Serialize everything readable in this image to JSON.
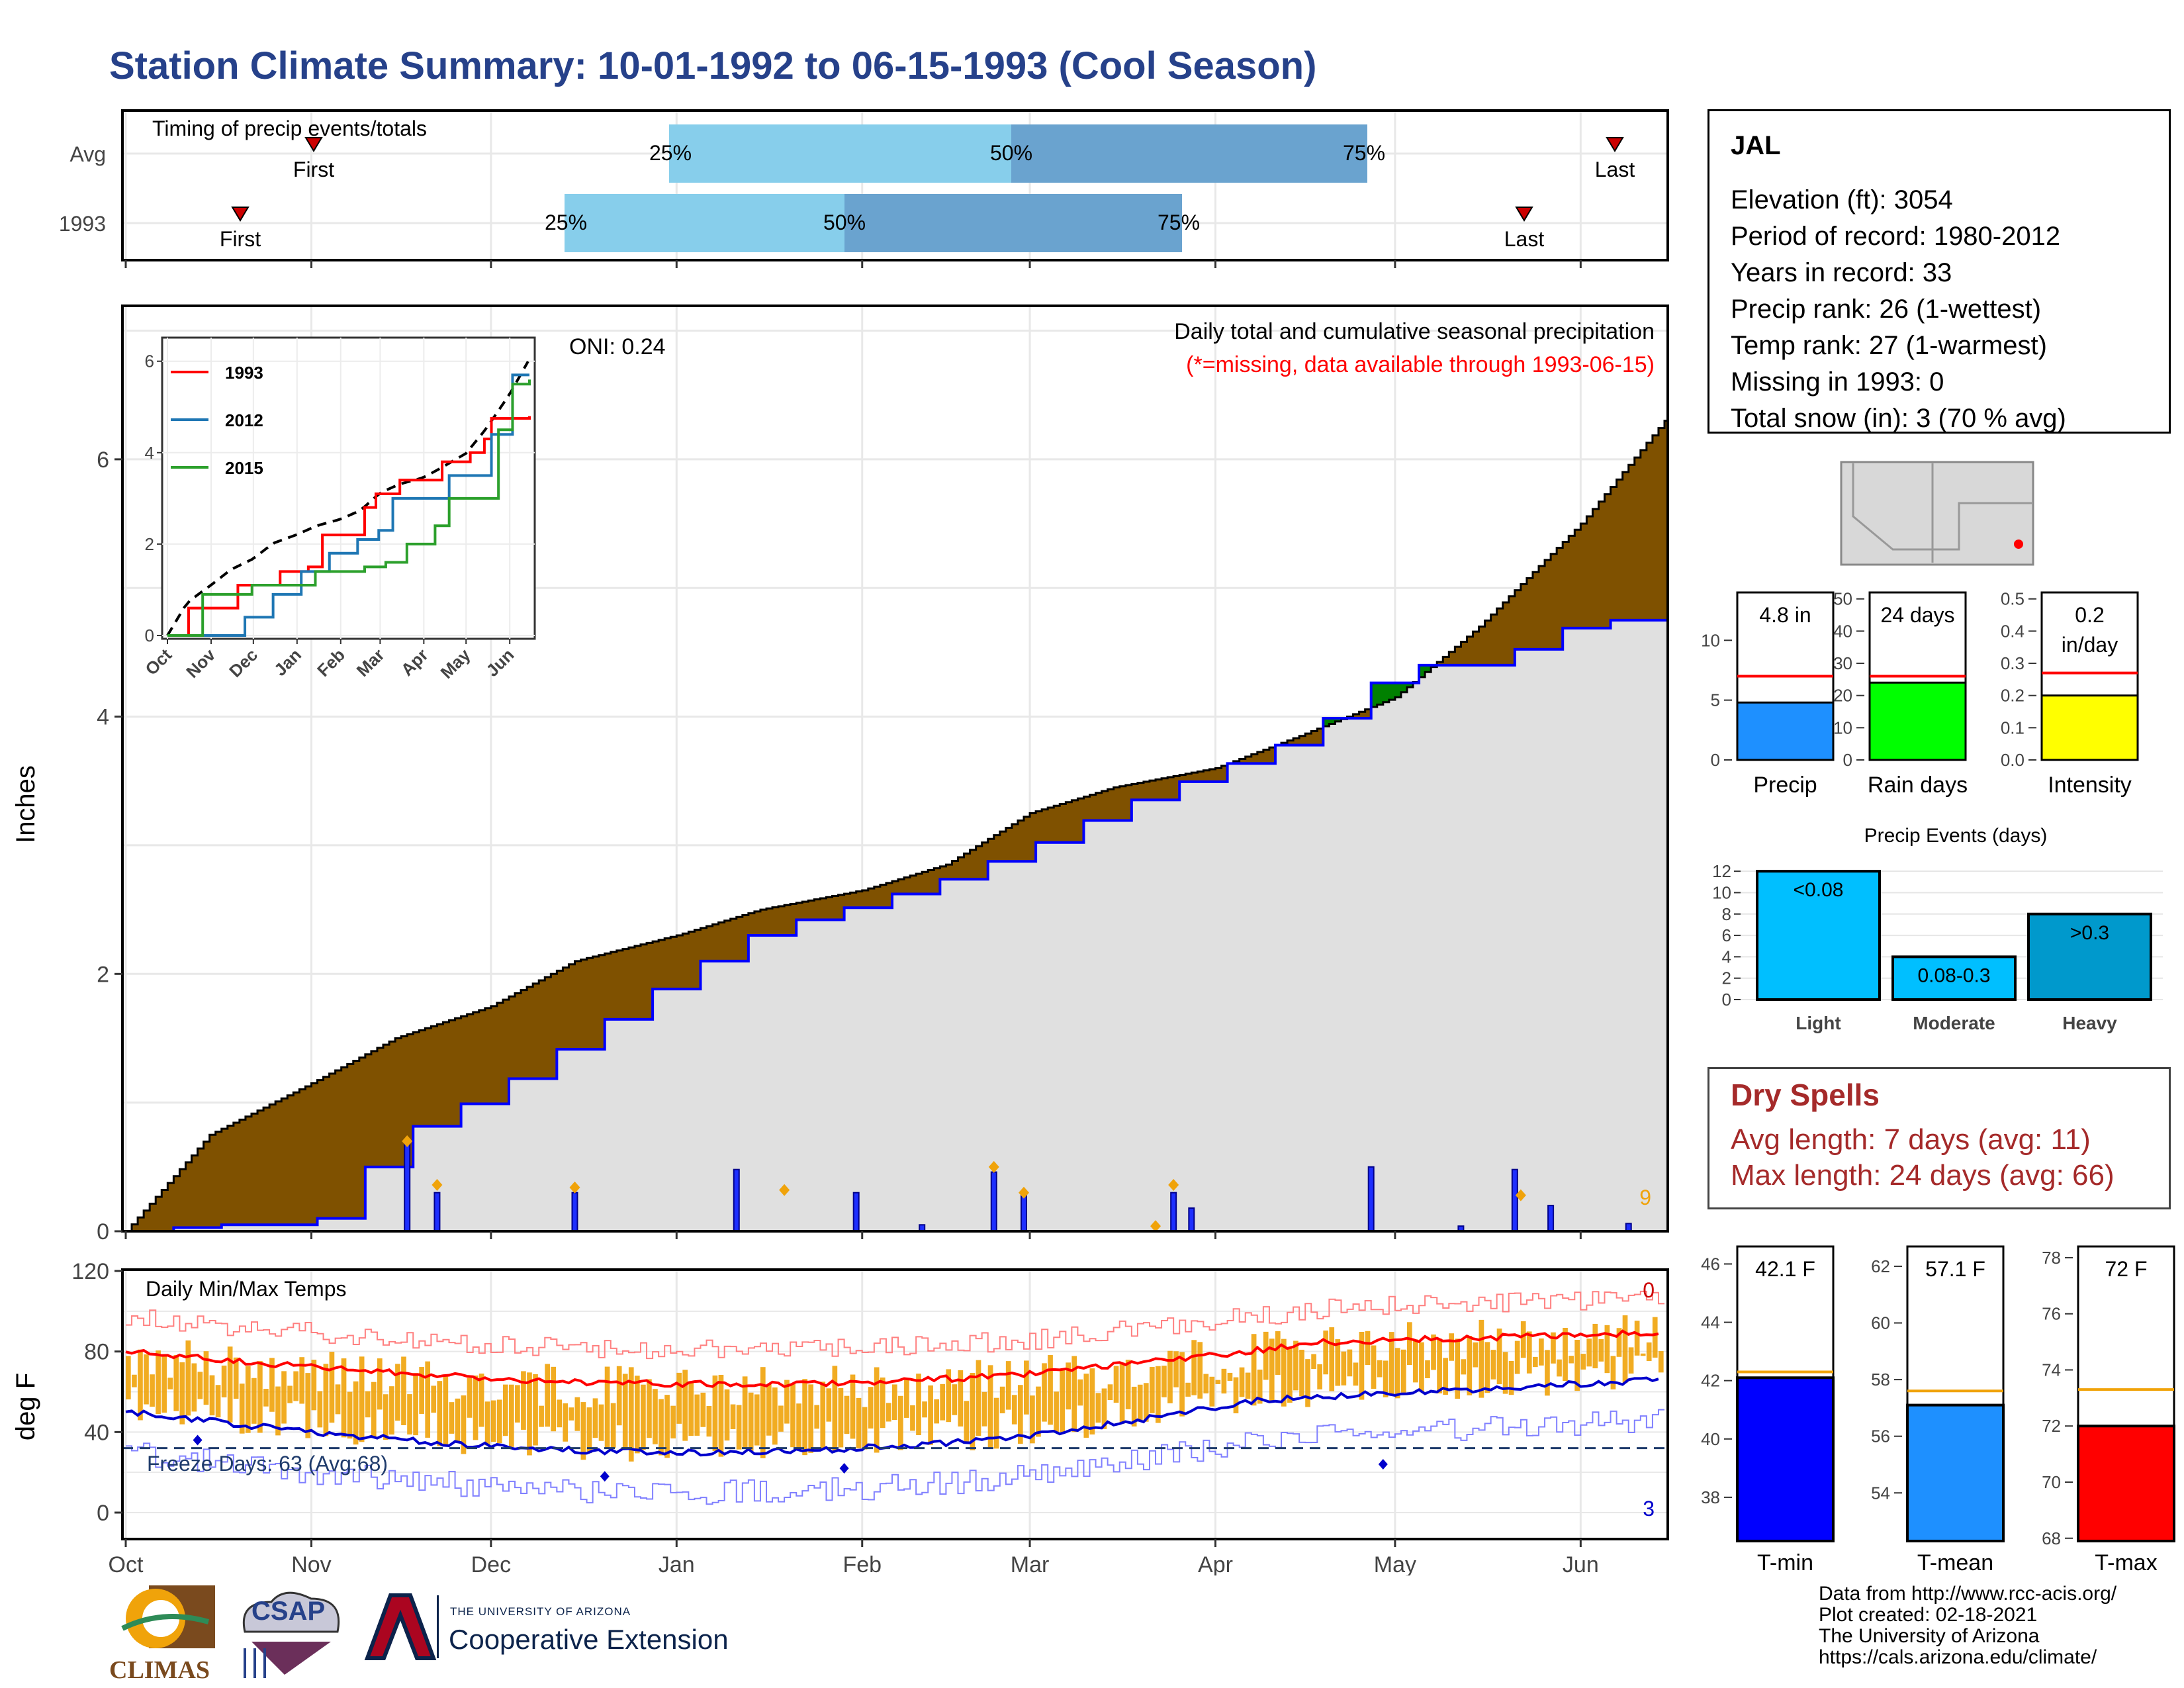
{
  "title": "Station Climate Summary: 10-01-1992 to 06-15-1993 (Cool Season)",
  "colors": {
    "title": "#26418a",
    "light_blue": "#87ceeb",
    "steel_blue": "#6aa3cf",
    "brown": "#7f5100",
    "green": "#008000",
    "grey_fill": "#e0e0e0",
    "avg_line": "#0000ff",
    "orange": "#f0a30a",
    "red": "#ff0000"
  },
  "timing_panel": {
    "title": "Timing of precip events/totals",
    "rows": [
      {
        "label": "Avg",
        "first": "First",
        "last": "Last",
        "p25": "25%",
        "p50": "50%",
        "p75": "75%"
      },
      {
        "label": "1993",
        "first": "First",
        "last": "Last",
        "p25": "25%",
        "p50": "50%",
        "p75": "75%"
      }
    ]
  },
  "precip_panel": {
    "ylabel": "Inches",
    "header": "Daily total and cumulative seasonal precipitation",
    "missing_note": "(*=missing, data available through 1993-06-15)",
    "oni": "ONI: 0.24",
    "corner_count": "9",
    "yticks": [
      "0",
      "2",
      "4",
      "6"
    ]
  },
  "inset": {
    "legend": [
      "1993",
      "2012",
      "2015"
    ],
    "yticks": [
      "0",
      "2",
      "4",
      "6"
    ],
    "xticks": [
      "Oct",
      "Nov",
      "Dec",
      "Jan",
      "Feb",
      "Mar",
      "Apr",
      "May",
      "Jun"
    ]
  },
  "temp_panel": {
    "title": "Daily Min/Max Temps",
    "ylabel": "deg F",
    "freeze": "Freeze Days: 63 (Avg:68)",
    "top_count": "0",
    "bottom_count": "3",
    "yticks": [
      "0",
      "40",
      "80",
      "120"
    ],
    "xticks": [
      "Oct",
      "Nov",
      "Dec",
      "Jan",
      "Feb",
      "Mar",
      "Apr",
      "May",
      "Jun"
    ]
  },
  "station": {
    "name": "JAL",
    "lines": [
      "Elevation (ft): 3054",
      "Period of record: 1980-2012",
      "Years in record: 33",
      "Precip rank: 26 (1-wettest)",
      "Temp rank: 27 (1-warmest)",
      "Missing in 1993: 0",
      "Total snow (in): 3 (70 % avg)"
    ]
  },
  "mini_bars": [
    {
      "label": "Precip",
      "top_text": "4.8 in",
      "value": 4.8,
      "avg": 7.0,
      "ymax": 14,
      "yticks": [
        "0",
        "5",
        "10"
      ],
      "tickvals": [
        0,
        5,
        10
      ],
      "color": "#1e90ff"
    },
    {
      "label": "Rain days",
      "top_text": "24 days",
      "value": 24,
      "avg": 26,
      "ymax": 52,
      "yticks": [
        "0",
        "10",
        "20",
        "30",
        "40",
        "50"
      ],
      "tickvals": [
        0,
        10,
        20,
        30,
        40,
        50
      ],
      "color": "#00ff00"
    },
    {
      "label": "Intensity",
      "top_text_1": "0.2",
      "top_text_2": "in/day",
      "value": 0.2,
      "avg": 0.27,
      "ymax": 0.52,
      "yticks": [
        "0.0",
        "0.1",
        "0.2",
        "0.3",
        "0.4",
        "0.5"
      ],
      "tickvals": [
        0,
        0.1,
        0.2,
        0.3,
        0.4,
        0.5
      ],
      "color": "#ffff00"
    }
  ],
  "precip_events": {
    "title": "Precip Events (days)",
    "yticks": [
      "0",
      "2",
      "4",
      "6",
      "8",
      "10",
      "12"
    ],
    "bars": [
      {
        "cat": "Light",
        "text": "<0.08",
        "value": 12,
        "color": "#00bfff"
      },
      {
        "cat": "Moderate",
        "text": "0.08-0.3",
        "value": 4,
        "color": "#00bfff"
      },
      {
        "cat": "Heavy",
        "text": ">0.3",
        "value": 8,
        "color": "#0099cc"
      }
    ]
  },
  "dry_spells": {
    "title": "Dry Spells",
    "avg": "Avg length: 7 days (avg: 11)",
    "max": "Max length: 24 days (avg: 66)"
  },
  "temp_bars": [
    {
      "label": "T-min",
      "top_text": "42.1 F",
      "value": 42.1,
      "avg": 42.3,
      "ylim": [
        36.5,
        46.6
      ],
      "yticks": [
        "38",
        "40",
        "42",
        "44",
        "46"
      ],
      "tickvals": [
        38,
        40,
        42,
        44,
        46
      ],
      "color": "#0000ff"
    },
    {
      "label": "T-mean",
      "top_text": "57.1 F",
      "value": 57.1,
      "avg": 57.6,
      "ylim": [
        52.3,
        62.7
      ],
      "yticks": [
        "54",
        "56",
        "58",
        "60",
        "62"
      ],
      "tickvals": [
        54,
        56,
        58,
        60,
        62
      ],
      "color": "#1e90ff"
    },
    {
      "label": "T-max",
      "top_text": "72 F",
      "value": 72.0,
      "avg": 73.3,
      "ylim": [
        67.9,
        78.4
      ],
      "yticks": [
        "68",
        "70",
        "72",
        "74",
        "76",
        "78"
      ],
      "tickvals": [
        68,
        70,
        72,
        74,
        76,
        78
      ],
      "color": "#ff0000"
    }
  ],
  "credits": [
    "Data from http://www.rcc-acis.org/",
    "Plot created: 02-18-2021",
    "The University of Arizona",
    "https://cals.arizona.edu/climate/"
  ],
  "logos": {
    "climas": "CLIMAS",
    "csap": "CSAP",
    "ua_small": "THE UNIVERSITY OF ARIZONA",
    "ua_big": "Cooperative Extension"
  },
  "chart_data": {
    "type": "area",
    "title": "Daily total and cumulative seasonal precipitation",
    "ylabel": "Inches",
    "x_dates": [
      "1992-10-01",
      "1992-10-15",
      "1992-11-01",
      "1992-11-15",
      "1992-12-01",
      "1992-12-15",
      "1993-01-01",
      "1993-01-15",
      "1993-02-01",
      "1993-02-15",
      "1993-03-01",
      "1993-03-15",
      "1993-04-01",
      "1993-04-15",
      "1993-05-01",
      "1993-05-15",
      "1993-06-01",
      "1993-06-15"
    ],
    "series": [
      {
        "name": "1993",
        "values": [
          0.0,
          0.05,
          0.05,
          0.75,
          1.1,
          1.5,
          2.0,
          2.35,
          2.55,
          2.75,
          3.0,
          3.3,
          3.6,
          3.85,
          4.4,
          4.4,
          4.75,
          4.75
        ]
      },
      {
        "name": "Avg",
        "values": [
          0.0,
          0.75,
          1.15,
          1.5,
          1.75,
          2.1,
          2.3,
          2.5,
          2.65,
          2.85,
          3.25,
          3.45,
          3.6,
          3.85,
          4.15,
          4.7,
          5.5,
          6.3
        ]
      }
    ],
    "ylim": [
      0,
      7
    ]
  }
}
